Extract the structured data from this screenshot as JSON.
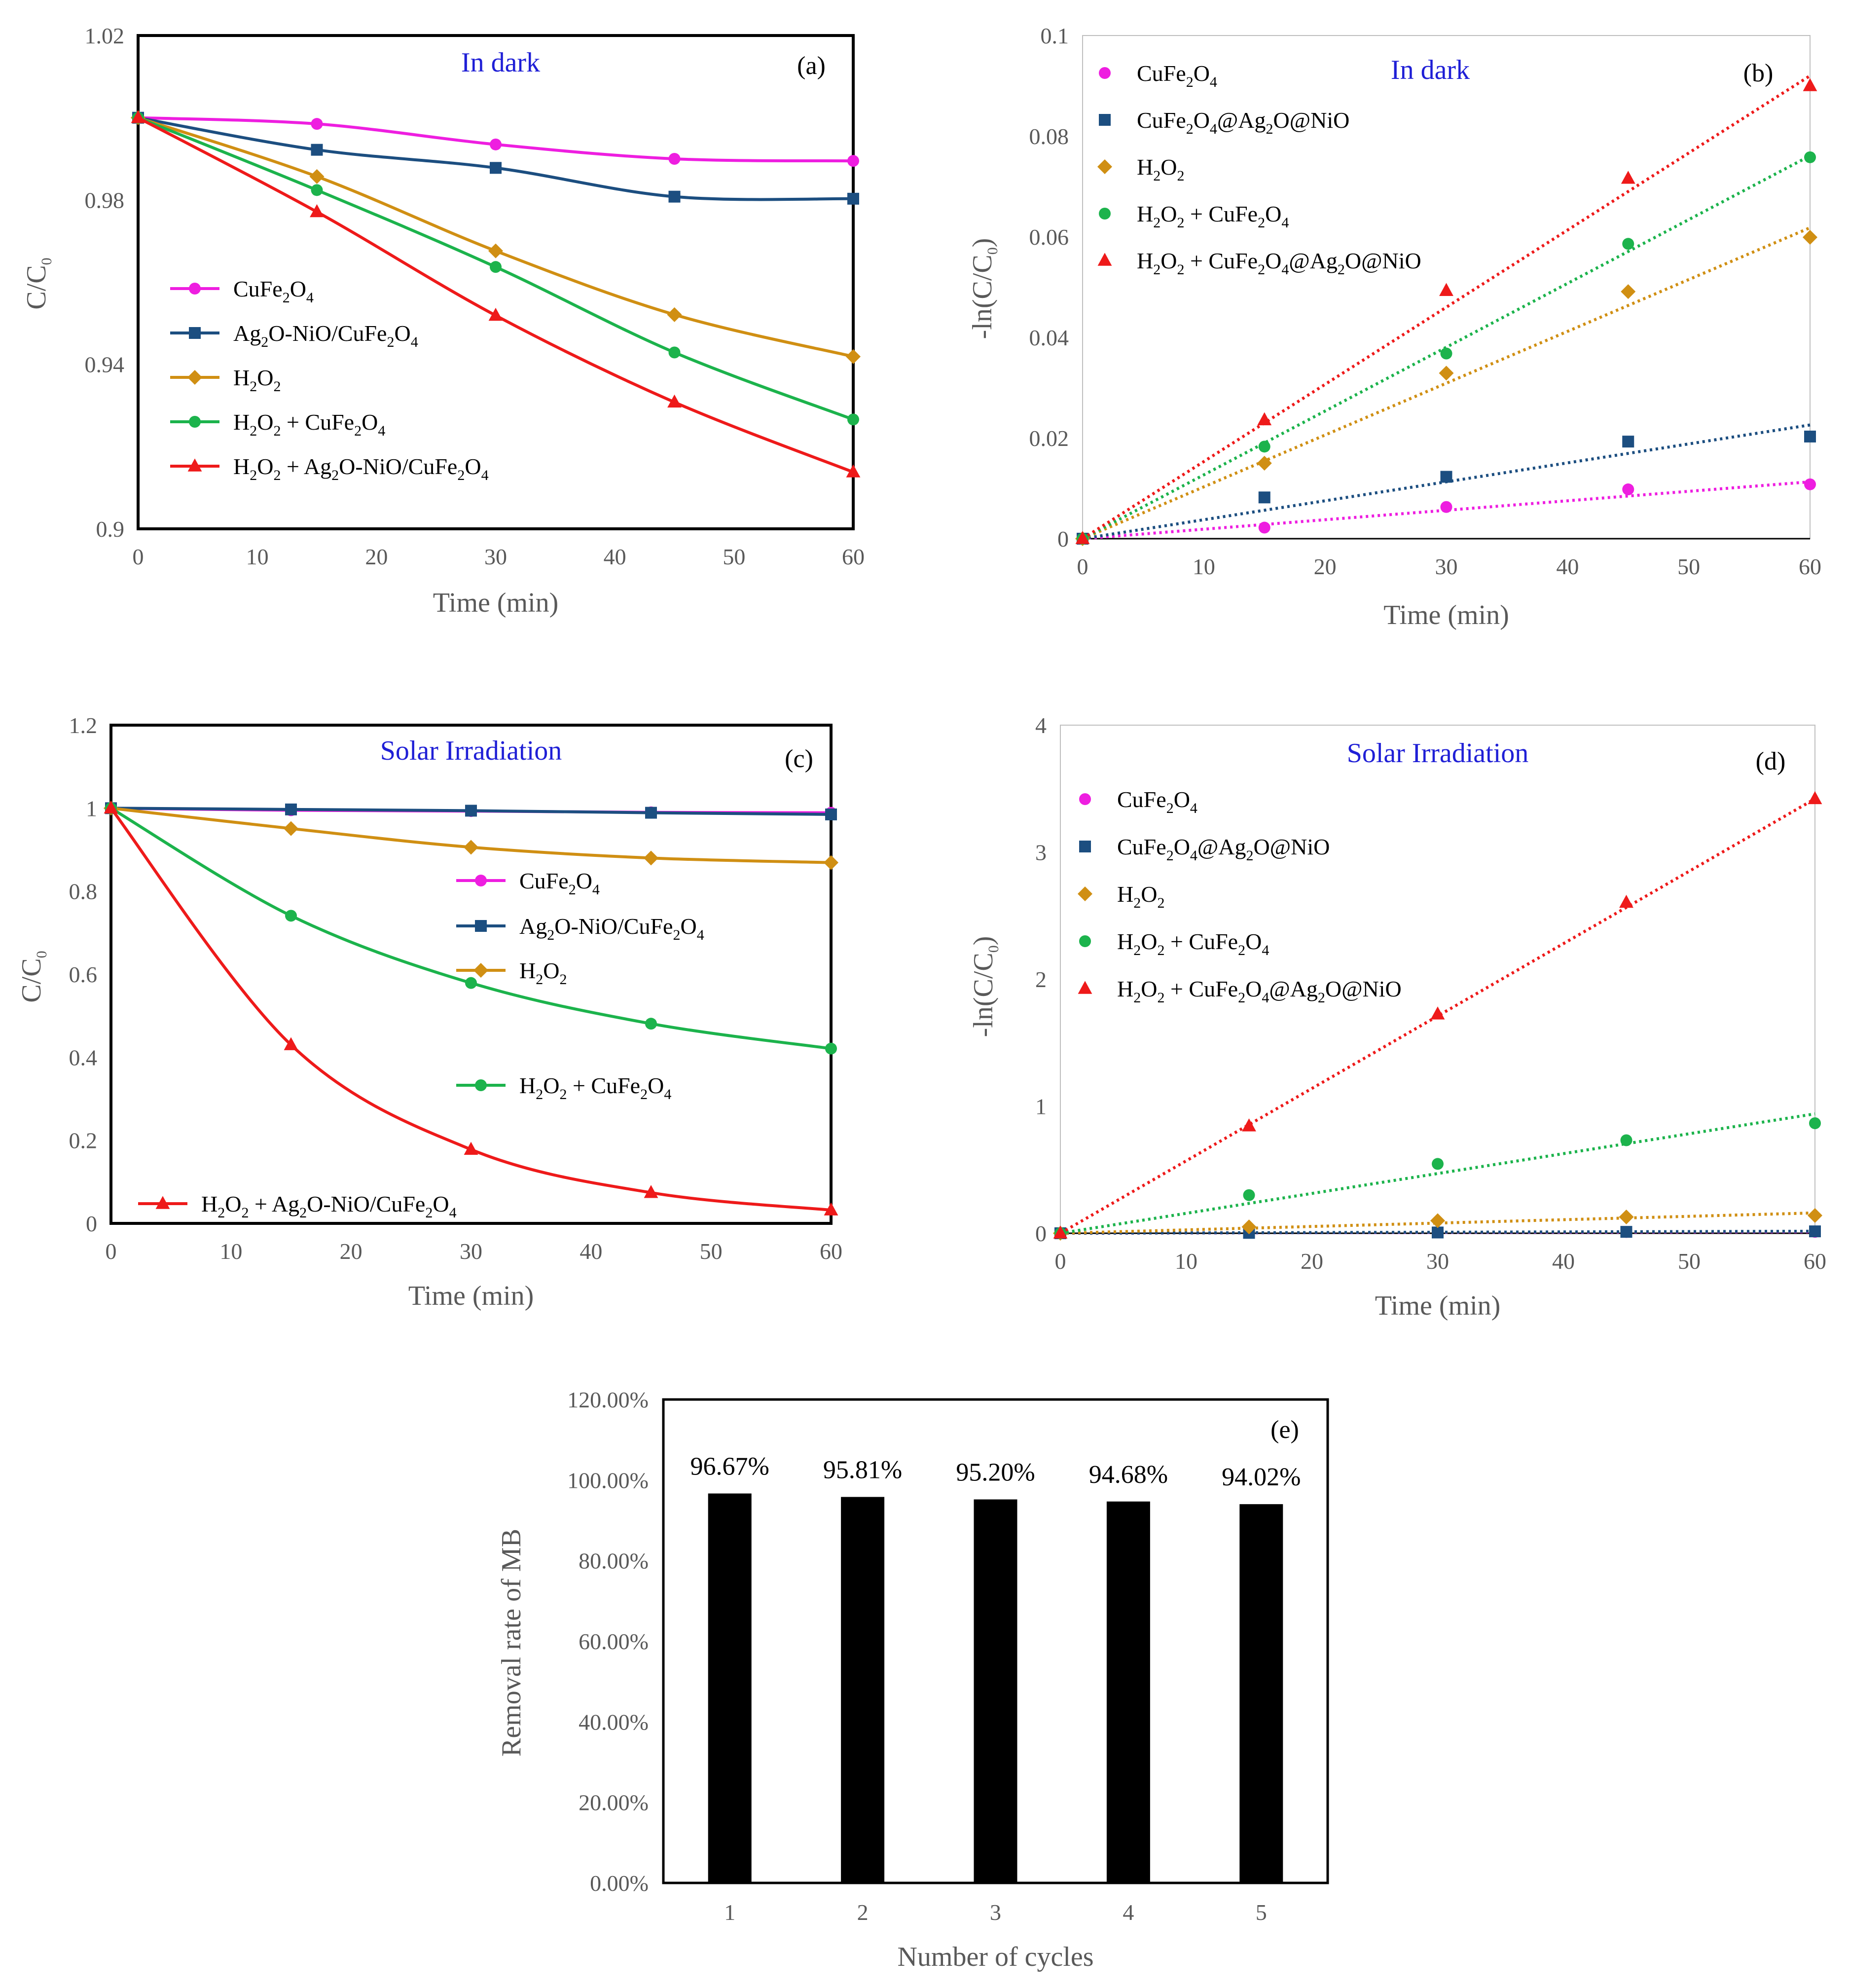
{
  "colors": {
    "CuFe2O4": "#ee1ee0",
    "AgNiO": "#1c4e80",
    "H2O2": "#d08f13",
    "H2O2_CuFe2O4": "#1cb34c",
    "H2O2_AgNiO": "#ee1a1a",
    "annotation": "#1f1fd6",
    "bar": "#000000"
  },
  "chart_data": [
    {
      "panel": "(a)",
      "type": "line",
      "annotation": "In dark",
      "xlabel": "Time (min)",
      "ylabel": "C/C0",
      "xlim": [
        0,
        60
      ],
      "ylim": [
        0.9,
        1.02
      ],
      "xticks": [
        0,
        10,
        20,
        30,
        40,
        50,
        60
      ],
      "yticks": [
        0.9,
        0.94,
        0.98,
        1.02
      ],
      "ytick_labels": [
        "0.9",
        "0.94",
        "0.98",
        "1.02"
      ],
      "x": [
        0,
        15,
        30,
        45,
        60
      ],
      "legend_position": "left-middle",
      "series": [
        {
          "key": "CuFe2O4",
          "name": "CuFe2O4",
          "marker": "circle",
          "values": [
            1.0,
            0.9985,
            0.9935,
            0.99,
            0.9895
          ]
        },
        {
          "key": "AgNiO",
          "name": "Ag2O-NiO/CuFe2O4",
          "marker": "square",
          "values": [
            1.0,
            0.9922,
            0.9878,
            0.9808,
            0.9803
          ]
        },
        {
          "key": "H2O2",
          "name": "H2O2",
          "marker": "diamond",
          "values": [
            1.0,
            0.9857,
            0.9676,
            0.9521,
            0.9419
          ]
        },
        {
          "key": "H2O2_CuFe2O4",
          "name": "H2O2 + CuFe2O4",
          "marker": "circle",
          "values": [
            1.0,
            0.9824,
            0.9637,
            0.9429,
            0.9266
          ]
        },
        {
          "key": "H2O2_AgNiO",
          "name": "H2O2 + Ag2O-NiO/CuFe2O4",
          "marker": "triangle",
          "values": [
            1.0,
            0.9771,
            0.9519,
            0.9308,
            0.9138
          ]
        }
      ]
    },
    {
      "panel": "(b)",
      "type": "scatter",
      "annotation": "In dark",
      "xlabel": "Time (min)",
      "ylabel": "-ln(C/C0)",
      "xlim": [
        0,
        60
      ],
      "ylim": [
        0,
        0.1
      ],
      "xticks": [
        0,
        10,
        20,
        30,
        40,
        50,
        60
      ],
      "yticks": [
        0,
        0.02,
        0.04,
        0.06,
        0.08,
        0.1
      ],
      "ytick_labels": [
        "0",
        "0.02",
        "0.04",
        "0.06",
        "0.08",
        "0.1"
      ],
      "x": [
        0,
        15,
        30,
        45,
        60
      ],
      "trendlines": "linear (dotted)",
      "legend_position": "top-left",
      "series": [
        {
          "key": "CuFe2O4",
          "name": "CuFe2O4",
          "marker": "circle",
          "values": [
            0,
            0.0022,
            0.0063,
            0.0098,
            0.0108
          ],
          "fit_end": 0.0113
        },
        {
          "key": "AgNiO",
          "name": "CuFe2O4@Ag2O@NiO",
          "marker": "square",
          "values": [
            0,
            0.0082,
            0.0123,
            0.0193,
            0.0203
          ],
          "fit_end": 0.0226
        },
        {
          "key": "H2O2",
          "name": "H2O2",
          "marker": "diamond",
          "values": [
            0,
            0.015,
            0.0329,
            0.0491,
            0.0599
          ],
          "fit_end": 0.0618
        },
        {
          "key": "H2O2_CuFe2O4",
          "name": "H2O2 + CuFe2O4",
          "marker": "circle",
          "values": [
            0,
            0.0183,
            0.0368,
            0.0586,
            0.0758
          ],
          "fit_end": 0.0761
        },
        {
          "key": "H2O2_AgNiO",
          "name": "H2O2 + CuFe2O4@Ag2O@NiO",
          "marker": "triangle",
          "values": [
            0,
            0.0236,
            0.0493,
            0.0716,
            0.09
          ],
          "fit_end": 0.092
        }
      ]
    },
    {
      "panel": "(c)",
      "type": "line",
      "annotation": "Solar Irradiation",
      "xlabel": "Time (min)",
      "ylabel": "C/C0",
      "xlim": [
        0,
        60
      ],
      "ylim": [
        0,
        1.2
      ],
      "xticks": [
        0,
        10,
        20,
        30,
        40,
        50,
        60
      ],
      "yticks": [
        0,
        0.2,
        0.4,
        0.6,
        0.8,
        1,
        1.2
      ],
      "ytick_labels": [
        "0",
        "0.2",
        "0.4",
        "0.6",
        "0.8",
        "1",
        "1.2"
      ],
      "x": [
        0,
        15,
        30,
        45,
        60
      ],
      "legend_position": "center",
      "series": [
        {
          "key": "CuFe2O4",
          "name": "CuFe2O4",
          "marker": "circle",
          "values": [
            1.0,
            0.995,
            0.993,
            0.99,
            0.989
          ]
        },
        {
          "key": "AgNiO",
          "name": "Ag2O-NiO/CuFe2O4",
          "marker": "square",
          "values": [
            1.0,
            0.997,
            0.994,
            0.989,
            0.985
          ]
        },
        {
          "key": "H2O2",
          "name": "H2O2",
          "marker": "diamond",
          "values": [
            1.0,
            0.951,
            0.906,
            0.88,
            0.869
          ]
        },
        {
          "key": "H2O2_CuFe2O4",
          "name": "H2O2 + CuFe2O4",
          "marker": "circle",
          "values": [
            1.0,
            0.741,
            0.579,
            0.481,
            0.421
          ]
        },
        {
          "key": "H2O2_AgNiO",
          "name": "H2O2 + Ag2O-NiO/CuFe2O4",
          "marker": "triangle",
          "values": [
            1.0,
            0.43,
            0.178,
            0.074,
            0.032
          ]
        }
      ]
    },
    {
      "panel": "(d)",
      "type": "scatter",
      "annotation": "Solar Irradiation",
      "xlabel": "Time (min)",
      "ylabel": "-ln(C/C0)",
      "xlim": [
        0,
        60
      ],
      "ylim": [
        0,
        4
      ],
      "xticks": [
        0,
        10,
        20,
        30,
        40,
        50,
        60
      ],
      "yticks": [
        0,
        1,
        2,
        3,
        4
      ],
      "ytick_labels": [
        "0",
        "1",
        "2",
        "3",
        "4"
      ],
      "x": [
        0,
        15,
        30,
        45,
        60
      ],
      "trendlines": "linear (dotted)",
      "legend_position": "top-left",
      "series": [
        {
          "key": "CuFe2O4",
          "name": "CuFe2O4",
          "marker": "circle",
          "values": [
            0,
            0.005,
            0.007,
            0.01,
            0.011
          ],
          "fit_end": 0.012
        },
        {
          "key": "AgNiO",
          "name": "CuFe2O4@Ag2O@NiO",
          "marker": "square",
          "values": [
            0,
            0.003,
            0.006,
            0.011,
            0.015
          ],
          "fit_end": 0.016
        },
        {
          "key": "H2O2",
          "name": "H2O2",
          "marker": "diamond",
          "values": [
            0,
            0.05,
            0.099,
            0.128,
            0.14
          ],
          "fit_end": 0.16
        },
        {
          "key": "H2O2_CuFe2O4",
          "name": "H2O2 + CuFe2O4",
          "marker": "circle",
          "values": [
            0,
            0.3,
            0.546,
            0.732,
            0.866
          ],
          "fit_end": 0.94
        },
        {
          "key": "H2O2_AgNiO",
          "name": "H2O2 + CuFe2O4@Ag2O@NiO",
          "marker": "triangle",
          "values": [
            0,
            0.844,
            1.725,
            2.604,
            3.42
          ],
          "fit_end": 3.42
        }
      ]
    },
    {
      "panel": "(e)",
      "type": "bar",
      "xlabel": "Number of cycles",
      "ylabel": "Removal rate of MB",
      "ylim": [
        0,
        120
      ],
      "yticks": [
        0,
        20,
        40,
        60,
        80,
        100,
        120
      ],
      "ytick_labels": [
        "0.00%",
        "20.00%",
        "40.00%",
        "60.00%",
        "80.00%",
        "100.00%",
        "120.00%"
      ],
      "categories": [
        "1",
        "2",
        "3",
        "4",
        "5"
      ],
      "values": [
        96.67,
        95.81,
        95.2,
        94.68,
        94.02
      ],
      "data_labels": [
        "96.67%",
        "95.81%",
        "95.20%",
        "94.68%",
        "94.02%"
      ]
    }
  ]
}
